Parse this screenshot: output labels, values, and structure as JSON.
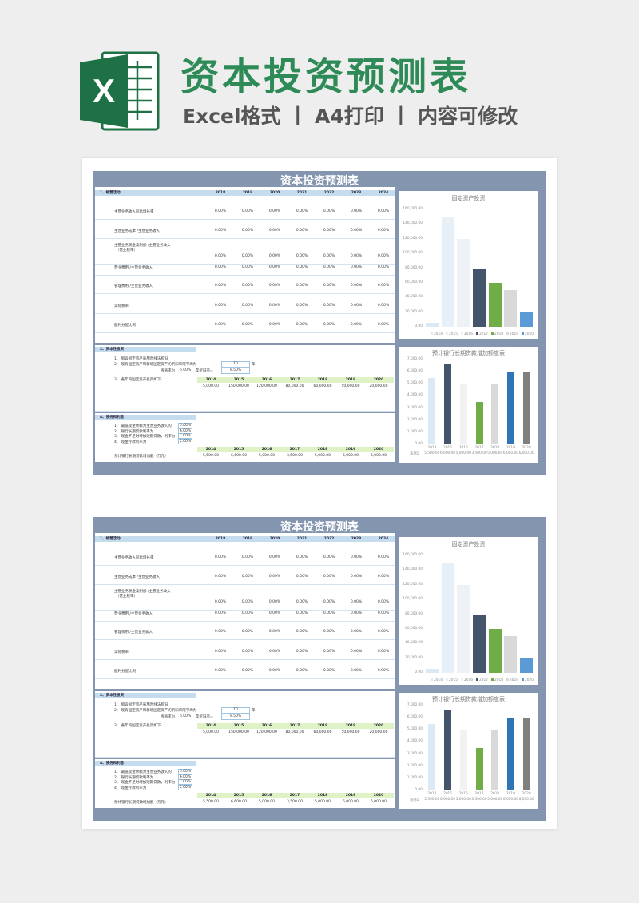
{
  "header": {
    "title": "资本投资预测表",
    "subtitle": "Excel格式 丨 A4打印 丨 内容可修改",
    "logo_letter": "X"
  },
  "sheet": {
    "title": "资本投资预测表",
    "s1": {
      "heading": "1、经营活动",
      "years": [
        "2018",
        "2019",
        "2020",
        "2021",
        "2022",
        "2023",
        "2024"
      ],
      "rows": [
        {
          "label": "主营业务收入同比增长率",
          "values": [
            "0.00%",
            "0.00%",
            "0.00%",
            "0.00%",
            "0.00%",
            "0.00%",
            "0.00%"
          ]
        },
        {
          "label": "主营业务成本 /主营业务收入",
          "values": [
            "0.00%",
            "0.00%",
            "0.00%",
            "0.00%",
            "0.00%",
            "0.00%",
            "0.00%"
          ]
        },
        {
          "label": "主营业务税金及附加 /主营业务收入",
          "label2": "（营业税率）",
          "values": [
            "0.00%",
            "0.00%",
            "0.00%",
            "0.00%",
            "0.00%",
            "0.00%",
            "0.00%"
          ]
        },
        {
          "label": "营业费用 /主营业务收入",
          "values": [
            "0.00%",
            "0.00%",
            "0.00%",
            "0.00%",
            "0.00%",
            "0.00%",
            "0.00%"
          ]
        },
        {
          "label": "管理费用 /主营业务收入",
          "values": [
            "0.00%",
            "0.00%",
            "0.00%",
            "0.00%",
            "0.00%",
            "0.00%",
            "0.00%"
          ]
        },
        {
          "label": "实际税率",
          "values": [
            "0.00%",
            "0.00%",
            "0.00%",
            "0.00%",
            "0.00%",
            "0.00%",
            "0.00%"
          ]
        },
        {
          "label": "股利分配比例",
          "values": [
            "0.00%",
            "0.00%",
            "0.00%",
            "0.00%",
            "0.00%",
            "0.00%",
            "0.00%"
          ]
        }
      ]
    },
    "s2": {
      "heading": "2、资本性投资",
      "l1": "1、 假设固定资产采用直线法折旧",
      "l2": "2、 现有固定资产和新增固定资产的折旧年限平均为",
      "l2_value": "10",
      "l2_unit": "年",
      "l3a": "残值率为",
      "l3a_value": "5.00%",
      "l3b": "年折旧率=",
      "l3b_value": "9.50%",
      "l4": "3、 各年的固定资产投资如下:",
      "years": [
        "2014",
        "2015",
        "2016",
        "2017",
        "2018",
        "2019",
        "2020"
      ],
      "values": [
        "5,000.00",
        "150,000.00",
        "120,000.00",
        "80,000.00",
        "60,000.00",
        "50,000.00",
        "20,000.00"
      ]
    },
    "s3": {
      "heading": "4、债务和利息",
      "items": [
        {
          "label": "1、 最低现金余额为主营业务收入的",
          "value": "5.00%"
        },
        {
          "label": "2、 银行长期贷款利率为",
          "value": "6.00%"
        },
        {
          "label": "3、 现金不足时增加短期贷款，利率为",
          "value": "7.00%"
        },
        {
          "label": "4、 现金存款利率为",
          "value": "2.00%"
        }
      ],
      "row_label": "预计银行长期贷款增加额（万元）",
      "years": [
        "2014",
        "2015",
        "2016",
        "2017",
        "2018",
        "2019",
        "2020"
      ],
      "values": [
        "5,500.00",
        "6,600.00",
        "5,000.00",
        "3,500.00",
        "5,000.00",
        "6,000.00",
        "6,000.00"
      ]
    }
  },
  "chart_data": [
    {
      "type": "bar",
      "title": "固定资产投资",
      "categories": [
        "2014",
        "2015",
        "2016",
        "2017",
        "2018",
        "2019",
        "2020"
      ],
      "values": [
        5000,
        150000,
        120000,
        80000,
        60000,
        50000,
        20000
      ],
      "ylim": [
        0,
        160000
      ],
      "yticks": [
        "160,000.00",
        "140,000.00",
        "120,000.00",
        "100,000.00",
        "80,000.00",
        "60,000.00",
        "40,000.00",
        "20,000.00",
        "0.00"
      ],
      "colors": [
        "#dbe9f4",
        "#e8f0f7",
        "#eef2f6",
        "#44546a",
        "#70ad47",
        "#d9d9d9",
        "#5b9bd5"
      ],
      "legend_position": "bottom"
    },
    {
      "type": "bar",
      "title": "预计银行长期贷款增加额度表",
      "categories": [
        "2014",
        "2015",
        "2016",
        "2017",
        "2018",
        "2019",
        "2020"
      ],
      "values": [
        5500,
        6600,
        5000,
        3500,
        5000,
        6000,
        6000
      ],
      "ylim": [
        0,
        7000
      ],
      "yticks": [
        "7,000.00",
        "6,000.00",
        "5,000.00",
        "4,000.00",
        "3,000.00",
        "2,000.00",
        "1,000.00",
        "0.00"
      ],
      "colors": [
        "#dbe9f4",
        "#44546a",
        "#f2f2f2",
        "#70ad47",
        "#d9d9d9",
        "#2e75b6",
        "#7f7f7f"
      ],
      "series_label": "系列1",
      "table_values": [
        "5,500.00",
        "6,600.00",
        "5,000.00",
        "3,500.00",
        "5,000.00",
        "6,000.00",
        "6,000.00"
      ]
    }
  ]
}
